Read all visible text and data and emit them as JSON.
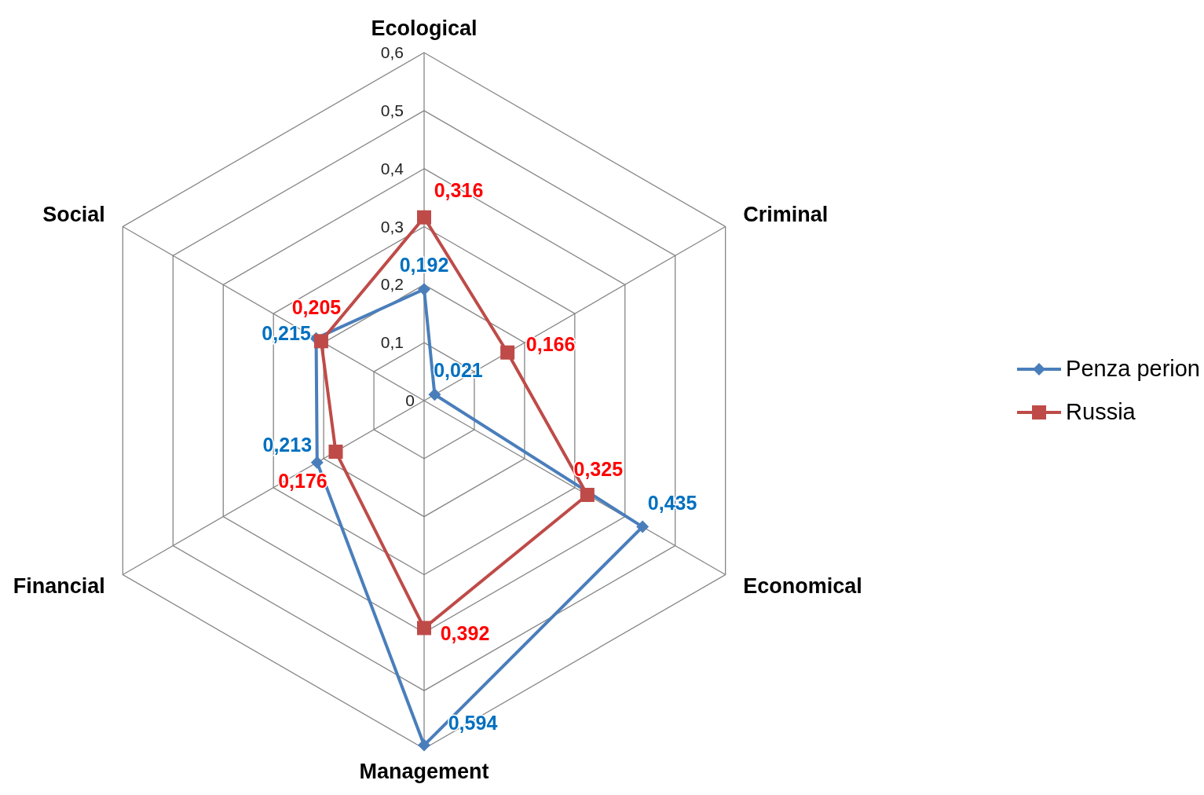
{
  "chart_data": {
    "type": "radar",
    "categories": [
      "Ecological",
      "Criminal",
      "Economical",
      "Management",
      "Financial",
      "Social"
    ],
    "series": [
      {
        "name": "Penza perion",
        "color": "#4a7ebb",
        "marker": "diamond",
        "values": [
          0.192,
          0.021,
          0.435,
          0.594,
          0.213,
          0.215
        ],
        "value_labels": [
          "0,192",
          "0,021",
          "0,435",
          "0,594",
          "0,213",
          "0,215"
        ]
      },
      {
        "name": "Russia",
        "color": "#be4b48",
        "marker": "square",
        "values": [
          0.316,
          0.166,
          0.325,
          0.392,
          0.176,
          0.205
        ],
        "value_labels": [
          "0,316",
          "0,166",
          "0,325",
          "0,392",
          "0,176",
          "0,205"
        ]
      }
    ],
    "ylim": [
      0,
      0.6
    ],
    "yticks": [
      {
        "value": 0,
        "label": "0"
      },
      {
        "value": 0.1,
        "label": "0,1"
      },
      {
        "value": 0.2,
        "label": "0,2"
      },
      {
        "value": 0.3,
        "label": "0,3"
      },
      {
        "value": 0.4,
        "label": "0,4"
      },
      {
        "value": 0.5,
        "label": "0,5"
      },
      {
        "value": 0.6,
        "label": "0,6"
      }
    ],
    "grid": true,
    "legend": "right"
  }
}
